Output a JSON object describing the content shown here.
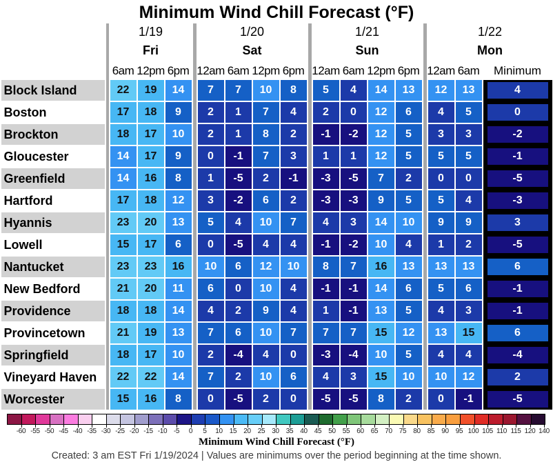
{
  "title": "Minimum Wind Chill Forecast (°F)",
  "header": {
    "min_header": "Minimum",
    "day_groups": [
      {
        "date": "1/19",
        "day": "Fri",
        "times": [
          "6am",
          "12pm",
          "6pm"
        ]
      },
      {
        "date": "1/20",
        "day": "Sat",
        "times": [
          "12am",
          "6am",
          "12pm",
          "6pm"
        ]
      },
      {
        "date": "1/21",
        "day": "Sun",
        "times": [
          "12am",
          "6am",
          "12pm",
          "6pm"
        ]
      },
      {
        "date": "1/22",
        "day": "Mon",
        "times": [
          "12am",
          "6am"
        ]
      }
    ]
  },
  "chart_data": {
    "type": "heatmap",
    "title": "Minimum Wind Chill Forecast (°F)",
    "columns": [
      "Fri 6am",
      "Fri 12pm",
      "Fri 6pm",
      "Sat 12am",
      "Sat 6am",
      "Sat 12pm",
      "Sat 6pm",
      "Sun 12am",
      "Sun 6am",
      "Sun 12pm",
      "Sun 6pm",
      "Mon 12am",
      "Mon 6am",
      "Minimum"
    ],
    "rows": [
      {
        "location": "Block Island",
        "values": [
          22,
          19,
          14,
          7,
          7,
          10,
          8,
          5,
          4,
          14,
          13,
          12,
          13
        ],
        "minimum": 4
      },
      {
        "location": "Boston",
        "values": [
          17,
          18,
          9,
          2,
          1,
          7,
          4,
          2,
          0,
          12,
          6,
          4,
          5
        ],
        "minimum": 0
      },
      {
        "location": "Brockton",
        "values": [
          18,
          17,
          10,
          2,
          1,
          8,
          2,
          -1,
          -2,
          12,
          5,
          3,
          3
        ],
        "minimum": -2
      },
      {
        "location": "Gloucester",
        "values": [
          14,
          17,
          9,
          0,
          -1,
          7,
          3,
          1,
          1,
          12,
          5,
          5,
          5
        ],
        "minimum": -1
      },
      {
        "location": "Greenfield",
        "values": [
          14,
          16,
          8,
          1,
          -5,
          2,
          -1,
          -3,
          -5,
          7,
          2,
          0,
          0
        ],
        "minimum": -5
      },
      {
        "location": "Hartford",
        "values": [
          17,
          18,
          12,
          3,
          -2,
          6,
          2,
          -3,
          -3,
          9,
          5,
          5,
          4
        ],
        "minimum": -3
      },
      {
        "location": "Hyannis",
        "values": [
          23,
          20,
          13,
          5,
          4,
          10,
          7,
          4,
          3,
          14,
          10,
          9,
          9
        ],
        "minimum": 3
      },
      {
        "location": "Lowell",
        "values": [
          15,
          17,
          6,
          0,
          -5,
          4,
          4,
          -1,
          -2,
          10,
          4,
          1,
          2
        ],
        "minimum": -5
      },
      {
        "location": "Nantucket",
        "values": [
          23,
          23,
          16,
          10,
          6,
          12,
          10,
          8,
          7,
          16,
          13,
          13,
          13
        ],
        "minimum": 6
      },
      {
        "location": "New Bedford",
        "values": [
          21,
          20,
          11,
          6,
          0,
          10,
          4,
          -1,
          -1,
          14,
          6,
          5,
          6
        ],
        "minimum": -1
      },
      {
        "location": "Providence",
        "values": [
          18,
          18,
          14,
          4,
          2,
          9,
          4,
          1,
          -1,
          13,
          5,
          4,
          3
        ],
        "minimum": -1
      },
      {
        "location": "Provincetown",
        "values": [
          21,
          19,
          13,
          7,
          6,
          10,
          7,
          7,
          7,
          15,
          12,
          13,
          15
        ],
        "minimum": 6
      },
      {
        "location": "Springfield",
        "values": [
          18,
          17,
          10,
          2,
          -4,
          4,
          0,
          -3,
          -4,
          10,
          5,
          4,
          4
        ],
        "minimum": -4
      },
      {
        "location": "Vineyard Haven",
        "values": [
          22,
          22,
          14,
          7,
          2,
          10,
          6,
          4,
          3,
          15,
          10,
          10,
          12
        ],
        "minimum": 2
      },
      {
        "location": "Worcester",
        "values": [
          15,
          16,
          8,
          0,
          -5,
          2,
          0,
          -5,
          -5,
          8,
          2,
          0,
          -1
        ],
        "minimum": -5
      }
    ],
    "value_bucket_size": 5,
    "colorbar_range": [
      -60,
      140
    ]
  },
  "palette": {
    "-5": "#17107F",
    "0": "#1C3AA9",
    "5": "#1560C6",
    "10": "#3492F2",
    "15": "#47B7F4",
    "20": "#62CAF6"
  },
  "style": {
    "dark_text_min": 15,
    "cell_text_light": "#FFFFFF",
    "cell_text_dark": "#111111",
    "label_bg_gray": "#D2D2D2",
    "separator_gray": "#A8A8A8",
    "min_strip_black": "#000000"
  },
  "colorbar": {
    "tick_labels": [
      "-60",
      "-55",
      "-50",
      "-45",
      "-40",
      "-35",
      "-30",
      "-25",
      "-20",
      "-15",
      "-10",
      "-5",
      "0",
      "5",
      "10",
      "15",
      "20",
      "25",
      "30",
      "35",
      "40",
      "45",
      "50",
      "55",
      "60",
      "65",
      "70",
      "75",
      "80",
      "85",
      "90",
      "95",
      "100",
      "105",
      "110",
      "115",
      "120",
      "140"
    ],
    "segment_colors": [
      "#8C1644",
      "#C2195C",
      "#E0399A",
      "#D871C2",
      "#FB7CE0",
      "#FACFEF",
      "#FFFFFF",
      "#DCDCEB",
      "#C5C5E1",
      "#A09DCD",
      "#7D70BA",
      "#5C4CAB",
      "#1D1587",
      "#1E3EB2",
      "#1A58C8",
      "#3392F2",
      "#4ABAF6",
      "#67CEF8",
      "#A6E9FB",
      "#40C8C0",
      "#1D9E96",
      "#1A5B53",
      "#1E6B2E",
      "#42A04A",
      "#7FC679",
      "#A7DB9C",
      "#D3F0C3",
      "#FAFAB4",
      "#FAD98A",
      "#F8C260",
      "#F9AB4B",
      "#F99E3E",
      "#F1502A",
      "#E02C25",
      "#BC1C2D",
      "#9B172F",
      "#541040",
      "#260B31"
    ],
    "caption": "Minimum Wind Chill Forecast (°F)"
  },
  "footer": "Created: 3 am EST Fri 1/19/2024  |  Values are minimums over the period beginning at the time shown."
}
